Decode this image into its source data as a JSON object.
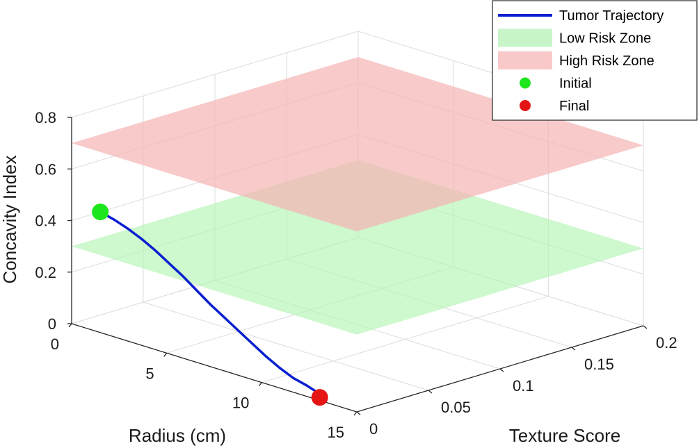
{
  "chart_data": {
    "type": "line",
    "projection": "3d",
    "title": "",
    "xlabel": "Radius (cm)",
    "ylabel": "Texture Score",
    "zlabel": "Concavity Index",
    "xlim": [
      0,
      15
    ],
    "ylim": [
      0,
      0.2
    ],
    "zlim": [
      0,
      0.8
    ],
    "x_ticks": [
      "0",
      "5",
      "10",
      "15"
    ],
    "y_ticks": [
      "0",
      "0.05",
      "0.1",
      "0.15",
      "0.2"
    ],
    "z_ticks": [
      "0",
      "0.2",
      "0.4",
      "0.6",
      "0.8"
    ],
    "grid": true,
    "legend_position": "top-right",
    "legend": [
      {
        "label": "Tumor Trajectory",
        "kind": "line",
        "color": "#0a1fd0"
      },
      {
        "label": "Low Risk Zone",
        "kind": "patch",
        "color": "#c8f5c8"
      },
      {
        "label": "High Risk Zone",
        "kind": "patch",
        "color": "#f9c9c9"
      },
      {
        "label": "Initial",
        "kind": "marker",
        "color": "#1ee61e"
      },
      {
        "label": "Final",
        "kind": "marker",
        "color": "#e61515"
      }
    ],
    "surfaces": [
      {
        "name": "Low Risk Zone",
        "z": 0.3,
        "x_range": [
          0,
          15
        ],
        "y_range": [
          0,
          0.2
        ],
        "color": "#b4f5b4",
        "opacity": 0.65
      },
      {
        "name": "High Risk Zone",
        "z": 0.7,
        "x_range": [
          0,
          15
        ],
        "y_range": [
          0,
          0.2
        ],
        "color": "#f5b4b4",
        "opacity": 0.7
      }
    ],
    "series": [
      {
        "name": "Tumor Trajectory",
        "color": "#0a1fd0",
        "points": [
          {
            "x": 0.0,
            "y": 0.02,
            "z": 0.4
          },
          {
            "x": 0.8,
            "y": 0.019,
            "z": 0.39
          },
          {
            "x": 1.6,
            "y": 0.018,
            "z": 0.375
          },
          {
            "x": 2.4,
            "y": 0.017,
            "z": 0.355
          },
          {
            "x": 3.2,
            "y": 0.016,
            "z": 0.33
          },
          {
            "x": 4.0,
            "y": 0.015,
            "z": 0.3
          },
          {
            "x": 4.8,
            "y": 0.014,
            "z": 0.27
          },
          {
            "x": 5.6,
            "y": 0.013,
            "z": 0.235
          },
          {
            "x": 6.4,
            "y": 0.012,
            "z": 0.2
          },
          {
            "x": 7.2,
            "y": 0.011,
            "z": 0.17
          },
          {
            "x": 8.0,
            "y": 0.01,
            "z": 0.14
          },
          {
            "x": 8.8,
            "y": 0.009,
            "z": 0.11
          },
          {
            "x": 9.6,
            "y": 0.008,
            "z": 0.08
          },
          {
            "x": 10.4,
            "y": 0.007,
            "z": 0.055
          },
          {
            "x": 11.2,
            "y": 0.006,
            "z": 0.035
          },
          {
            "x": 12.0,
            "y": 0.005,
            "z": 0.025
          },
          {
            "x": 12.5,
            "y": 0.004,
            "z": 0.018
          },
          {
            "x": 12.8,
            "y": 0.003,
            "z": 0.012
          },
          {
            "x": 12.9,
            "y": 0.002,
            "z": 0.005
          }
        ]
      }
    ],
    "markers": [
      {
        "name": "Initial",
        "x": 0.0,
        "y": 0.02,
        "z": 0.4,
        "color": "#1ee61e"
      },
      {
        "name": "Final",
        "x": 12.9,
        "y": 0.002,
        "z": 0.005,
        "color": "#e61515"
      }
    ]
  }
}
